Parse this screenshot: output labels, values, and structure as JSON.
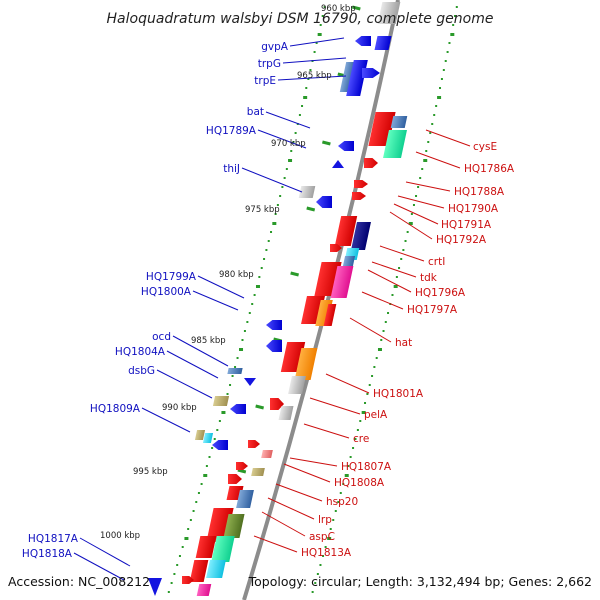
{
  "title": "Haloquadratum walsbyi DSM 16790, complete genome",
  "accession": "Accession: NC_008212",
  "topology": "Topology: circular; Length: 3,132,494 bp; Genes: 2,662",
  "kbp_ticks": [
    "960 kbp",
    "965 kbp",
    "970 kbp",
    "975 kbp",
    "980 kbp",
    "985 kbp",
    "990 kbp",
    "995 kbp",
    "1000 kbp"
  ],
  "left_labels": [
    "gvpA",
    "trpG",
    "trpE",
    "bat",
    "HQ1789A",
    "thiJ",
    "HQ1799A",
    "HQ1800A",
    "ocd",
    "HQ1804A",
    "dsbG",
    "HQ1809A",
    "HQ1817A",
    "HQ1818A"
  ],
  "right_labels": [
    "cysE",
    "HQ1786A",
    "HQ1788A",
    "HQ1790A",
    "HQ1791A",
    "HQ1792A",
    "crtI",
    "tdk",
    "HQ1796A",
    "HQ1797A",
    "hat",
    "HQ1801A",
    "pelA",
    "cre",
    "HQ1807A",
    "HQ1808A",
    "hsp20",
    "lrp",
    "aspC",
    "HQ1813A"
  ],
  "colors": {
    "backbone": "#909090",
    "forward_strand": "#e81818",
    "reverse_strand": "#1414e0",
    "left_label": "#1010c0",
    "right_label": "#cc1010",
    "gc_dots": "#2a9a2a"
  }
}
